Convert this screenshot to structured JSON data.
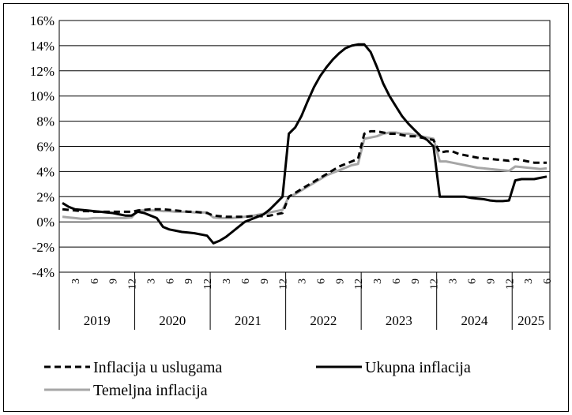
{
  "chart_data": {
    "type": "line",
    "y_axis": {
      "min": -4,
      "max": 16,
      "step": 2,
      "tick_labels": [
        "-4%",
        "-2%",
        "0%",
        "2%",
        "4%",
        "6%",
        "8%",
        "10%",
        "12%",
        "14%",
        "16%"
      ]
    },
    "grid": "horizontal",
    "x_axis": {
      "month_tick_labels": [
        "3",
        "6",
        "9",
        "12"
      ],
      "years": [
        "2019",
        "2020",
        "2021",
        "2022",
        "2023",
        "2024",
        "2025"
      ],
      "last_year_months": 6
    },
    "legend_position": "bottom",
    "series": [
      {
        "name": "Inflacija u uslugama",
        "color": "#000000",
        "style": "dashed",
        "values": [
          1.0,
          0.95,
          0.9,
          0.85,
          0.85,
          0.8,
          0.8,
          0.8,
          0.8,
          0.8,
          0.8,
          0.8,
          0.9,
          0.95,
          1.0,
          1.0,
          1.0,
          0.95,
          0.9,
          0.85,
          0.8,
          0.8,
          0.75,
          0.7,
          0.5,
          0.45,
          0.4,
          0.4,
          0.4,
          0.4,
          0.45,
          0.45,
          0.45,
          0.5,
          0.6,
          0.7,
          2.0,
          2.3,
          2.6,
          2.9,
          3.2,
          3.5,
          3.8,
          4.1,
          4.4,
          4.6,
          4.8,
          5.0,
          7.0,
          7.2,
          7.2,
          7.1,
          7.0,
          7.0,
          6.9,
          6.8,
          6.8,
          6.7,
          6.6,
          6.5,
          5.5,
          5.6,
          5.6,
          5.4,
          5.3,
          5.2,
          5.1,
          5.05,
          5.0,
          4.95,
          4.9,
          4.85,
          5.0,
          4.9,
          4.8,
          4.7,
          4.7,
          4.7
        ]
      },
      {
        "name": "Ukupna inflacija",
        "color": "#000000",
        "style": "solid",
        "values": [
          1.5,
          1.2,
          1.0,
          0.95,
          0.9,
          0.85,
          0.8,
          0.75,
          0.7,
          0.6,
          0.5,
          0.5,
          0.8,
          0.7,
          0.5,
          0.3,
          -0.4,
          -0.6,
          -0.7,
          -0.8,
          -0.85,
          -0.9,
          -1.0,
          -1.1,
          -1.7,
          -1.5,
          -1.2,
          -0.8,
          -0.4,
          0.0,
          0.2,
          0.4,
          0.6,
          1.0,
          1.5,
          2.0,
          7.0,
          7.5,
          8.4,
          9.6,
          10.7,
          11.6,
          12.3,
          12.9,
          13.4,
          13.8,
          14.0,
          14.1,
          14.1,
          13.5,
          12.3,
          11.0,
          10.0,
          9.2,
          8.4,
          7.8,
          7.3,
          6.8,
          6.5,
          6.0,
          2.0,
          2.0,
          2.0,
          2.0,
          2.0,
          1.9,
          1.85,
          1.8,
          1.7,
          1.65,
          1.65,
          1.7,
          3.3,
          3.4,
          3.4,
          3.4,
          3.5,
          3.6
        ]
      },
      {
        "name": "Temeljna inflacija",
        "color": "#a6a6a6",
        "style": "solid",
        "values": [
          0.4,
          0.35,
          0.3,
          0.25,
          0.25,
          0.3,
          0.3,
          0.3,
          0.3,
          0.3,
          0.3,
          0.35,
          0.9,
          0.9,
          0.9,
          0.9,
          0.85,
          0.85,
          0.8,
          0.8,
          0.8,
          0.75,
          0.75,
          0.75,
          0.35,
          0.3,
          0.3,
          0.3,
          0.35,
          0.4,
          0.45,
          0.55,
          0.65,
          0.75,
          0.85,
          0.95,
          2.0,
          2.2,
          2.5,
          2.8,
          3.1,
          3.4,
          3.7,
          3.9,
          4.1,
          4.3,
          4.5,
          4.6,
          6.6,
          6.7,
          6.8,
          7.0,
          7.1,
          7.1,
          7.0,
          7.0,
          6.9,
          6.8,
          6.7,
          6.6,
          4.8,
          4.8,
          4.7,
          4.6,
          4.5,
          4.4,
          4.3,
          4.25,
          4.2,
          4.15,
          4.1,
          4.05,
          4.4,
          4.35,
          4.3,
          4.25,
          4.2,
          4.25
        ]
      }
    ]
  }
}
